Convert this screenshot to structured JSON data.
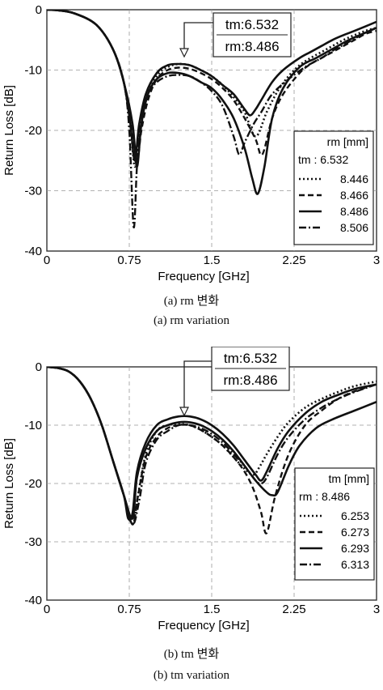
{
  "chart_data": [
    {
      "type": "line",
      "xlabel": "Frequency [GHz]",
      "ylabel": "Return Loss [dB]",
      "xlim": [
        0,
        3
      ],
      "ylim": [
        -40,
        0
      ],
      "xticks": [
        "0",
        "0.75",
        "1.5",
        "2.25",
        "3"
      ],
      "yticks": [
        "0",
        "-10",
        "-20",
        "-30",
        "-40"
      ],
      "grid": "dashed at ticks",
      "legend_position": "bottom-right",
      "legend_title": "rm [mm]",
      "legend_fixed": "tm : 6.532",
      "annotation": [
        "tm:6.532",
        "rm:8.486"
      ],
      "caption_ko": "(a) rm 변화",
      "caption_en": "(a) rm variation",
      "series": [
        {
          "name": "8.446",
          "style": "dotted",
          "x": [
            0,
            0.1,
            0.25,
            0.45,
            0.6,
            0.7,
            0.76,
            0.8,
            0.84,
            0.9,
            1.0,
            1.1,
            1.2,
            1.3,
            1.4,
            1.5,
            1.6,
            1.7,
            1.8,
            1.9,
            2.0,
            2.1,
            2.2,
            2.3,
            2.4,
            2.5,
            2.6,
            2.7,
            2.8,
            2.9,
            3.0
          ],
          "y": [
            0,
            -0.1,
            -0.6,
            -2.5,
            -6.5,
            -12,
            -19,
            -26,
            -21,
            -15,
            -11,
            -9.5,
            -9,
            -9.2,
            -10,
            -11,
            -12.5,
            -14.5,
            -17,
            -21,
            -17,
            -13.5,
            -11,
            -9.2,
            -8,
            -7,
            -6,
            -5,
            -4.2,
            -3.5,
            -3
          ]
        },
        {
          "name": "8.466",
          "style": "dashed",
          "x": [
            0,
            0.1,
            0.25,
            0.45,
            0.6,
            0.7,
            0.77,
            0.82,
            0.86,
            0.92,
            1.0,
            1.1,
            1.2,
            1.3,
            1.4,
            1.5,
            1.6,
            1.7,
            1.8,
            1.9,
            1.96,
            2.05,
            2.15,
            2.3,
            2.4,
            2.5,
            2.6,
            2.7,
            2.8,
            2.9,
            3.0
          ],
          "y": [
            0,
            -0.1,
            -0.6,
            -2.5,
            -6.5,
            -12,
            -19,
            -25,
            -20,
            -15,
            -11.5,
            -10,
            -9.6,
            -9.8,
            -10.5,
            -11.5,
            -13,
            -15,
            -18,
            -21.5,
            -24,
            -18,
            -14,
            -10.5,
            -9,
            -8,
            -7,
            -6,
            -5,
            -4,
            -3.5
          ]
        },
        {
          "name": "8.486",
          "style": "solid",
          "x": [
            0,
            0.1,
            0.25,
            0.45,
            0.6,
            0.7,
            0.76,
            0.8,
            0.84,
            0.9,
            1.0,
            1.1,
            1.2,
            1.3,
            1.4,
            1.5,
            1.6,
            1.7,
            1.8,
            1.85,
            1.9,
            1.95,
            2.05,
            2.15,
            2.3,
            2.4,
            2.5,
            2.6,
            2.7,
            2.8,
            3.0
          ],
          "y": [
            0,
            -0.1,
            -0.6,
            -2.5,
            -6.5,
            -12,
            -19,
            -25,
            -19,
            -14,
            -10.5,
            -9.2,
            -9,
            -9.2,
            -10,
            -11,
            -12.5,
            -14,
            -16.5,
            -17.5,
            -16.5,
            -15,
            -12,
            -10,
            -8,
            -7,
            -6,
            -5,
            -4.2,
            -3.5,
            -2
          ]
        },
        {
          "name": "8.506",
          "style": "dashdot",
          "x": [
            0,
            0.1,
            0.25,
            0.45,
            0.6,
            0.7,
            0.75,
            0.79,
            0.82,
            0.86,
            0.92,
            1.0,
            1.1,
            1.2,
            1.3,
            1.4,
            1.5,
            1.6,
            1.7,
            1.75,
            1.8,
            1.88,
            1.95,
            2.05,
            2.2,
            2.35,
            2.5,
            2.6,
            2.7,
            2.8,
            2.9,
            3.0
          ],
          "y": [
            0,
            -0.1,
            -0.6,
            -2.5,
            -6.5,
            -12,
            -20,
            -36,
            -26,
            -18,
            -14,
            -12,
            -11,
            -10.8,
            -11,
            -12,
            -13.5,
            -16,
            -21,
            -24,
            -22,
            -19,
            -17,
            -14,
            -11.5,
            -9.5,
            -8,
            -6.8,
            -5.8,
            -4.8,
            -3.8,
            -3
          ]
        },
        {
          "name": "",
          "style": "solid",
          "x": [
            0,
            0.1,
            0.25,
            0.45,
            0.6,
            0.7,
            0.78,
            0.82,
            0.86,
            0.92,
            1.0,
            1.1,
            1.2,
            1.3,
            1.4,
            1.5,
            1.6,
            1.7,
            1.8,
            1.87,
            1.92,
            1.98,
            2.05,
            2.15,
            2.3,
            2.45,
            2.6,
            2.75,
            2.9,
            3.0
          ],
          "y": [
            0,
            -0.1,
            -0.6,
            -2.5,
            -6.5,
            -12,
            -19,
            -26,
            -19,
            -14,
            -11.5,
            -10.5,
            -10.5,
            -11,
            -12,
            -13,
            -15,
            -18,
            -23,
            -28,
            -30.5,
            -26,
            -18,
            -13,
            -9.5,
            -8,
            -6.5,
            -5,
            -3.8,
            -3
          ]
        }
      ]
    },
    {
      "type": "line",
      "xlabel": "Frequency [GHz]",
      "ylabel": "Return Loss [dB]",
      "xlim": [
        0,
        3
      ],
      "ylim": [
        -40,
        0
      ],
      "xticks": [
        "0",
        "0.75",
        "1.5",
        "2.25",
        "3"
      ],
      "yticks": [
        "0",
        "-10",
        "-20",
        "-30",
        "-40"
      ],
      "grid": "dashed at ticks",
      "legend_position": "bottom-right",
      "legend_title": "tm [mm]",
      "legend_fixed": "rm : 8.486",
      "annotation": [
        "tm:6.532",
        "rm:8.486"
      ],
      "caption_ko": "(b) tm 변화",
      "caption_en": "(b) tm variation",
      "series": [
        {
          "name": "6.253",
          "style": "dotted",
          "x": [
            0,
            0.1,
            0.2,
            0.3,
            0.4,
            0.5,
            0.6,
            0.7,
            0.78,
            0.83,
            0.9,
            1.0,
            1.1,
            1.2,
            1.3,
            1.4,
            1.5,
            1.6,
            1.7,
            1.8,
            1.88,
            1.94,
            2.0,
            2.1,
            2.2,
            2.35,
            2.5,
            2.65,
            2.8,
            3.0
          ],
          "y": [
            0,
            -0.2,
            -0.8,
            -2.5,
            -5.5,
            -10,
            -16,
            -22,
            -27,
            -22,
            -15,
            -11,
            -10,
            -9.8,
            -10,
            -10.8,
            -12,
            -13.5,
            -15.5,
            -17.5,
            -18.5,
            -17,
            -15,
            -12,
            -9.5,
            -7,
            -5.5,
            -4.3,
            -3.3,
            -2.5
          ]
        },
        {
          "name": "6.273",
          "style": "dashed",
          "x": [
            0,
            0.1,
            0.2,
            0.3,
            0.4,
            0.5,
            0.6,
            0.7,
            0.78,
            0.83,
            0.9,
            1.0,
            1.1,
            1.2,
            1.3,
            1.4,
            1.5,
            1.6,
            1.7,
            1.8,
            1.88,
            1.95,
            2.0,
            2.08,
            2.2,
            2.35,
            2.5,
            2.65,
            2.8,
            3.0
          ],
          "y": [
            0,
            -0.2,
            -0.8,
            -2.5,
            -5.5,
            -10,
            -16,
            -22,
            -27,
            -22,
            -15.5,
            -12,
            -10.5,
            -10,
            -10,
            -10.8,
            -12,
            -13.5,
            -15.5,
            -18,
            -21,
            -25,
            -28.5,
            -22,
            -15,
            -10,
            -7.5,
            -5.5,
            -4.2,
            -3
          ]
        },
        {
          "name": "6.293",
          "style": "solid",
          "x": [
            0,
            0.1,
            0.2,
            0.3,
            0.4,
            0.5,
            0.6,
            0.7,
            0.74,
            0.78,
            0.82,
            0.9,
            1.0,
            1.1,
            1.2,
            1.3,
            1.4,
            1.5,
            1.6,
            1.7,
            1.8,
            1.9,
            1.95,
            2.0,
            2.1,
            2.2,
            2.35,
            2.5,
            2.65,
            2.8,
            3.0
          ],
          "y": [
            0,
            -0.2,
            -0.8,
            -2.5,
            -5.5,
            -10,
            -16,
            -22,
            -26,
            -25,
            -18,
            -13,
            -10,
            -9,
            -8.5,
            -8.5,
            -9,
            -10,
            -11.5,
            -13.5,
            -16,
            -18.5,
            -19.5,
            -18,
            -14,
            -11,
            -8,
            -6,
            -4.8,
            -3.8,
            -3
          ]
        },
        {
          "name": "6.313",
          "style": "dashdot",
          "x": [
            0,
            0.1,
            0.2,
            0.3,
            0.4,
            0.5,
            0.6,
            0.7,
            0.78,
            0.84,
            0.9,
            1.0,
            1.1,
            1.2,
            1.3,
            1.4,
            1.5,
            1.6,
            1.7,
            1.8,
            1.9,
            1.95,
            2.0,
            2.1,
            2.2,
            2.35,
            2.5,
            2.65,
            2.8,
            3.0
          ],
          "y": [
            0,
            -0.2,
            -0.8,
            -2.5,
            -5.5,
            -10,
            -16,
            -22,
            -27,
            -23,
            -16.5,
            -12.5,
            -11,
            -10,
            -10,
            -10.5,
            -11.5,
            -13,
            -15,
            -17,
            -19.5,
            -20,
            -19,
            -15,
            -12,
            -9,
            -7,
            -5.5,
            -4.3,
            -3
          ]
        },
        {
          "name": "",
          "style": "solid",
          "x": [
            0,
            0.1,
            0.2,
            0.3,
            0.4,
            0.5,
            0.6,
            0.7,
            0.78,
            0.82,
            0.9,
            1.0,
            1.1,
            1.2,
            1.3,
            1.4,
            1.5,
            1.6,
            1.7,
            1.8,
            1.9,
            2.0,
            2.05,
            2.1,
            2.2,
            2.3,
            2.45,
            2.6,
            2.8,
            3.0
          ],
          "y": [
            0,
            -0.2,
            -0.8,
            -2.5,
            -5.5,
            -10,
            -16,
            -22,
            -26,
            -19,
            -14,
            -11,
            -10,
            -9.5,
            -9.5,
            -10,
            -11,
            -12.5,
            -14.5,
            -17,
            -19.5,
            -21.5,
            -22,
            -21.5,
            -17,
            -13.5,
            -10.5,
            -9,
            -7.5,
            -6
          ]
        }
      ]
    }
  ]
}
